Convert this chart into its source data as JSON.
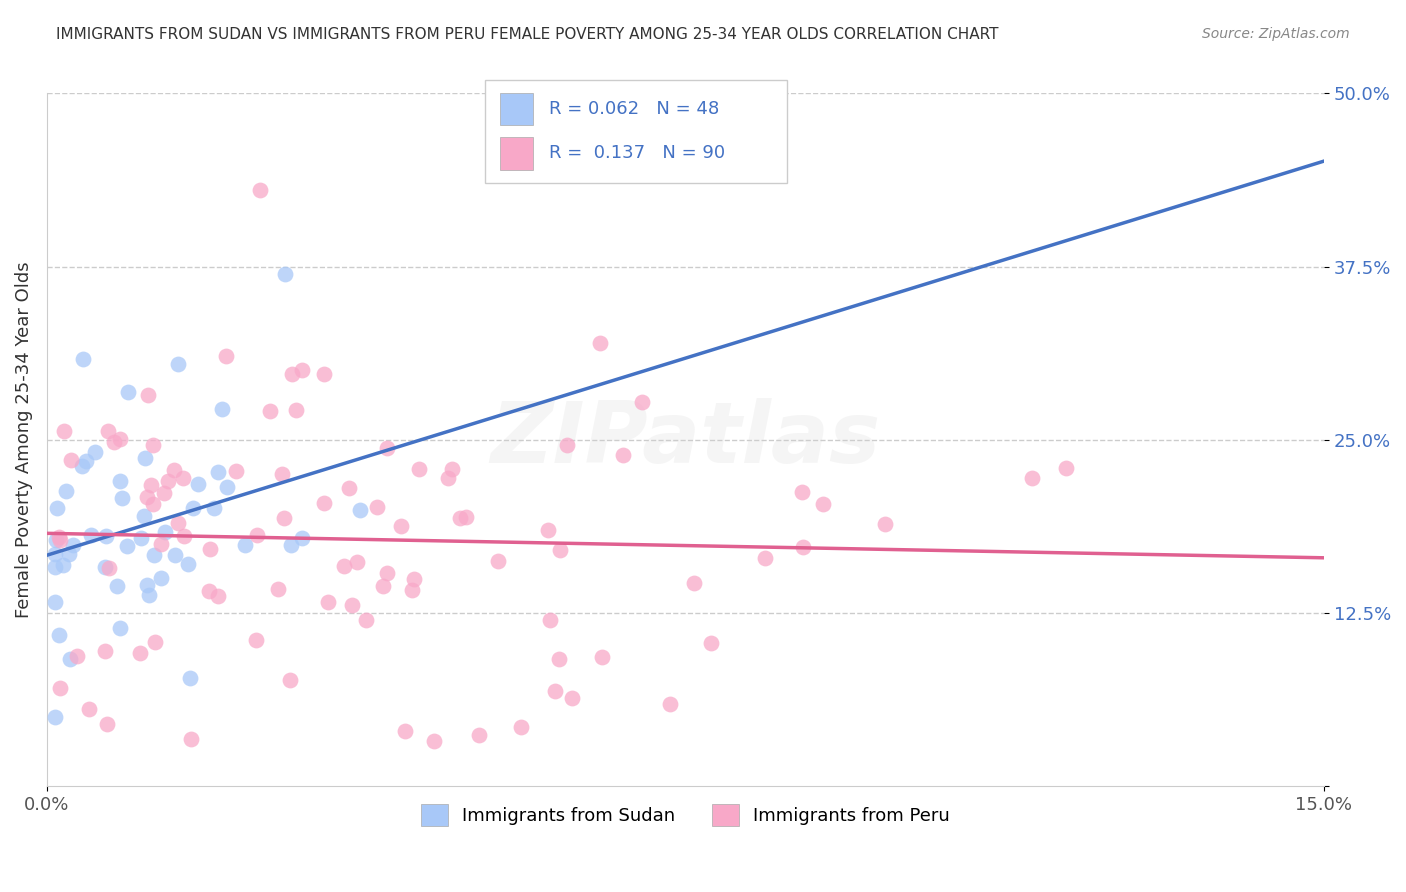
{
  "title": "IMMIGRANTS FROM SUDAN VS IMMIGRANTS FROM PERU FEMALE POVERTY AMONG 25-34 YEAR OLDS CORRELATION CHART",
  "source": "Source: ZipAtlas.com",
  "ylabel": "Female Poverty Among 25-34 Year Olds",
  "xlim": [
    0.0,
    0.15
  ],
  "ylim": [
    0.0,
    0.5
  ],
  "ytick_vals": [
    0.0,
    0.125,
    0.25,
    0.375,
    0.5
  ],
  "ytick_labels": [
    "",
    "12.5%",
    "25.0%",
    "37.5%",
    "50.0%"
  ],
  "xtick_vals": [
    0.0,
    0.15
  ],
  "xtick_labels": [
    "0.0%",
    "15.0%"
  ],
  "legend_labels": [
    "Immigrants from Sudan",
    "Immigrants from Peru"
  ],
  "legend_R": [
    0.062,
    0.137
  ],
  "legend_N": [
    48,
    90
  ],
  "sudan_color": "#a8c8f8",
  "peru_color": "#f8a8c8",
  "sudan_line_color": "#4472c4",
  "peru_line_color": "#e06090",
  "background_color": "#ffffff",
  "grid_color": "#cccccc",
  "watermark": "ZIPatlas"
}
